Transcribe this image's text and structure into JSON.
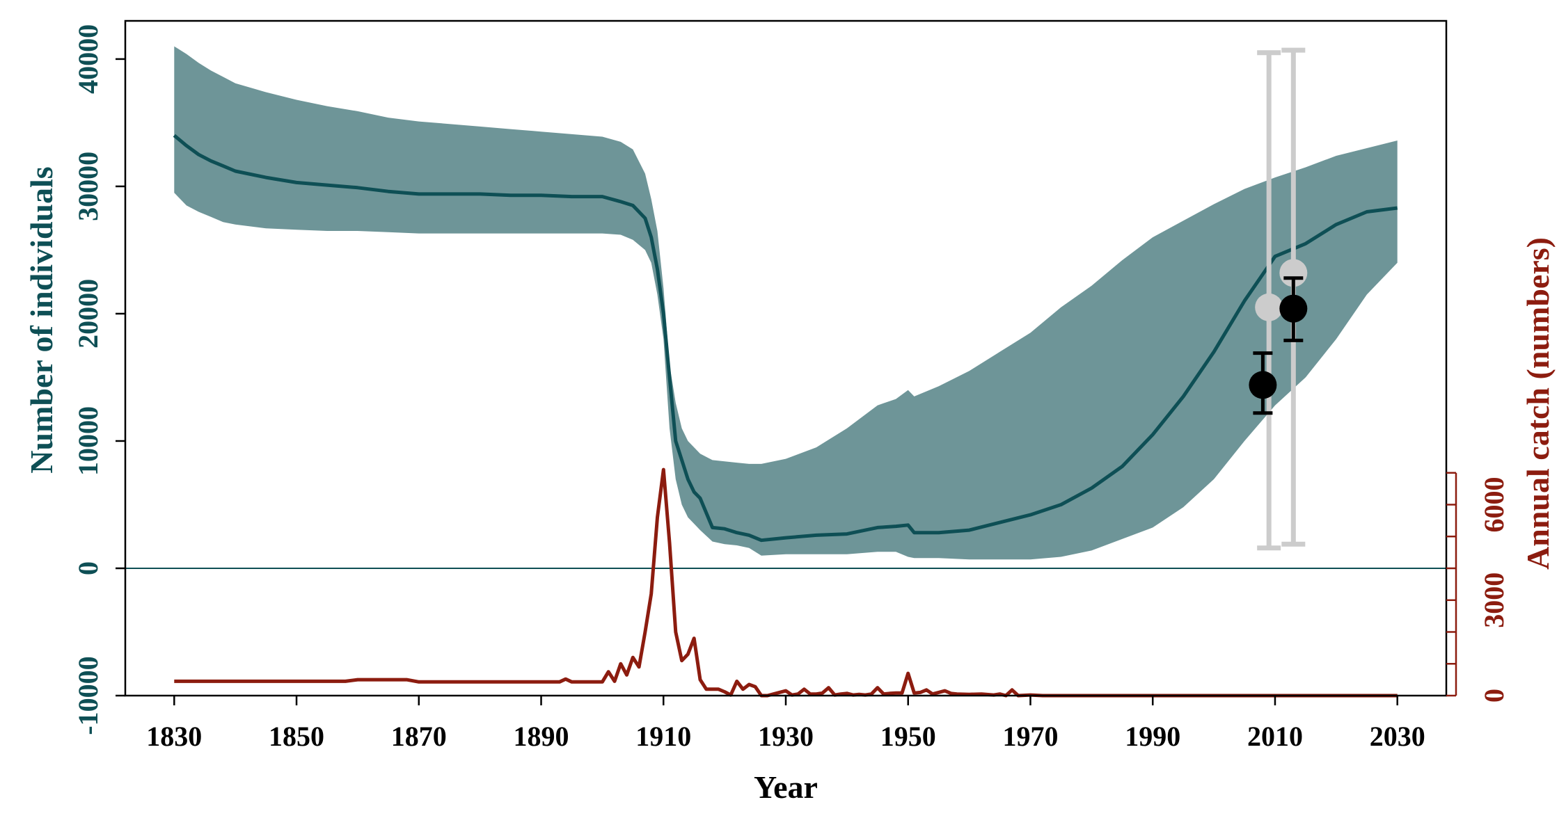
{
  "chart_data": {
    "type": "line",
    "xlabel": "Year",
    "ylabel_left": "Number of individuals",
    "ylabel_right": "Annual catch (numbers)",
    "xlim": [
      1822,
      2038
    ],
    "ylim_left": [
      -10000,
      43000
    ],
    "ylim_right": [
      0,
      21200
    ],
    "grid": false,
    "colors": {
      "population": "#0e4f55",
      "population_band": "#6e9598",
      "catch": "#8c1c0f",
      "observation": "#000000",
      "survey": "#cccccc",
      "frame": "#000000"
    },
    "x_ticks": [
      "1830",
      "1850",
      "1870",
      "1890",
      "1910",
      "1930",
      "1950",
      "1970",
      "1990",
      "2010",
      "2030"
    ],
    "y_left_ticks": [
      "-10000",
      "0",
      "10000",
      "20000",
      "30000",
      "40000"
    ],
    "y_right_ticks": [
      "0",
      "3000",
      "6000"
    ],
    "reference_line_y": 0,
    "population": {
      "x": [
        1830,
        1832,
        1834,
        1836,
        1838,
        1840,
        1845,
        1850,
        1855,
        1860,
        1865,
        1870,
        1875,
        1880,
        1885,
        1890,
        1895,
        1900,
        1903,
        1905,
        1907,
        1908,
        1909,
        1910,
        1911,
        1912,
        1913,
        1914,
        1915,
        1916,
        1918,
        1920,
        1922,
        1924,
        1926,
        1930,
        1935,
        1940,
        1945,
        1948,
        1950,
        1951,
        1955,
        1960,
        1965,
        1970,
        1975,
        1980,
        1985,
        1990,
        1995,
        2000,
        2005,
        2010,
        2015,
        2020,
        2025,
        2030
      ],
      "y": [
        34000,
        33200,
        32500,
        32000,
        31600,
        31200,
        30700,
        30300,
        30100,
        29900,
        29600,
        29400,
        29400,
        29400,
        29300,
        29300,
        29200,
        29200,
        28800,
        28500,
        27500,
        26000,
        23500,
        20000,
        15000,
        10000,
        8500,
        7000,
        6000,
        5500,
        3200,
        3100,
        2800,
        2600,
        2200,
        2400,
        2600,
        2700,
        3200,
        3300,
        3400,
        2800,
        2800,
        3000,
        3600,
        4200,
        5000,
        6300,
        8000,
        10500,
        13500,
        17000,
        21000,
        24500,
        25500,
        27000,
        28000,
        28300
      ]
    },
    "population_band": {
      "x": [
        1830,
        1832,
        1834,
        1836,
        1838,
        1840,
        1845,
        1850,
        1855,
        1860,
        1865,
        1870,
        1875,
        1880,
        1885,
        1890,
        1895,
        1900,
        1903,
        1905,
        1907,
        1908,
        1909,
        1910,
        1911,
        1912,
        1913,
        1914,
        1915,
        1916,
        1918,
        1920,
        1922,
        1924,
        1926,
        1930,
        1935,
        1940,
        1945,
        1948,
        1950,
        1951,
        1955,
        1960,
        1965,
        1970,
        1975,
        1980,
        1985,
        1990,
        1995,
        2000,
        2005,
        2010,
        2015,
        2020,
        2025,
        2030
      ],
      "upper": [
        41000,
        40400,
        39700,
        39100,
        38600,
        38100,
        37400,
        36800,
        36300,
        35900,
        35400,
        35100,
        34900,
        34700,
        34500,
        34300,
        34100,
        33900,
        33500,
        32900,
        31000,
        29000,
        26500,
        22000,
        16000,
        13000,
        11000,
        10000,
        9500,
        9000,
        8500,
        8400,
        8300,
        8200,
        8200,
        8600,
        9500,
        11000,
        12800,
        13300,
        14000,
        13500,
        14300,
        15500,
        17000,
        18500,
        20500,
        22200,
        24200,
        26000,
        27300,
        28600,
        29800,
        30700,
        31500,
        32400,
        33000,
        33600
      ],
      "lower": [
        29500,
        28500,
        28000,
        27600,
        27200,
        27000,
        26700,
        26600,
        26500,
        26500,
        26400,
        26300,
        26300,
        26300,
        26300,
        26300,
        26300,
        26300,
        26200,
        25800,
        25000,
        24000,
        21500,
        18000,
        11000,
        7000,
        5000,
        4000,
        3500,
        3000,
        2100,
        1900,
        1800,
        1600,
        1000,
        1100,
        1100,
        1100,
        1300,
        1300,
        900,
        800,
        800,
        700,
        700,
        700,
        900,
        1400,
        2300,
        3200,
        4800,
        7000,
        10000,
        12800,
        15000,
        18000,
        21500,
        24000
      ]
    },
    "observations": {
      "x": [
        2008,
        2013
      ],
      "y": [
        14400,
        20400
      ],
      "lower": [
        12200,
        17900
      ],
      "upper": [
        16900,
        22800
      ]
    },
    "survey": {
      "x": [
        2009,
        2013
      ],
      "y": [
        20500,
        23200
      ],
      "lower": [
        1600,
        1900
      ],
      "upper": [
        40500,
        40700
      ]
    },
    "catch": {
      "x": [
        1830,
        1840,
        1850,
        1858,
        1860,
        1868,
        1870,
        1880,
        1890,
        1893,
        1894,
        1895,
        1900,
        1901,
        1902,
        1903,
        1904,
        1905,
        1906,
        1907,
        1908,
        1909,
        1910,
        1911,
        1912,
        1913,
        1914,
        1915,
        1916,
        1917,
        1918,
        1919,
        1920,
        1921,
        1922,
        1923,
        1924,
        1925,
        1926,
        1927,
        1928,
        1930,
        1931,
        1932,
        1933,
        1934,
        1935,
        1936,
        1937,
        1938,
        1939,
        1940,
        1941,
        1942,
        1943,
        1944,
        1945,
        1946,
        1947,
        1948,
        1949,
        1950,
        1951,
        1952,
        1953,
        1954,
        1955,
        1956,
        1957,
        1958,
        1960,
        1962,
        1964,
        1965,
        1966,
        1967,
        1968,
        1970,
        1972,
        1975,
        1980,
        1990,
        2000,
        2010,
        2020,
        2030
      ],
      "y": [
        450,
        450,
        450,
        450,
        500,
        500,
        430,
        430,
        430,
        430,
        520,
        430,
        430,
        750,
        450,
        1000,
        650,
        1200,
        900,
        2000,
        3200,
        5600,
        7100,
        4800,
        2000,
        1100,
        1300,
        1800,
        500,
        200,
        200,
        200,
        120,
        20,
        450,
        200,
        350,
        280,
        0,
        0,
        50,
        150,
        20,
        50,
        200,
        50,
        50,
        80,
        250,
        20,
        50,
        70,
        20,
        40,
        20,
        50,
        250,
        50,
        70,
        80,
        80,
        700,
        80,
        100,
        180,
        50,
        100,
        150,
        70,
        50,
        40,
        50,
        20,
        50,
        0,
        180,
        0,
        20,
        0,
        0,
        0,
        0,
        0,
        0,
        0,
        0
      ]
    }
  }
}
